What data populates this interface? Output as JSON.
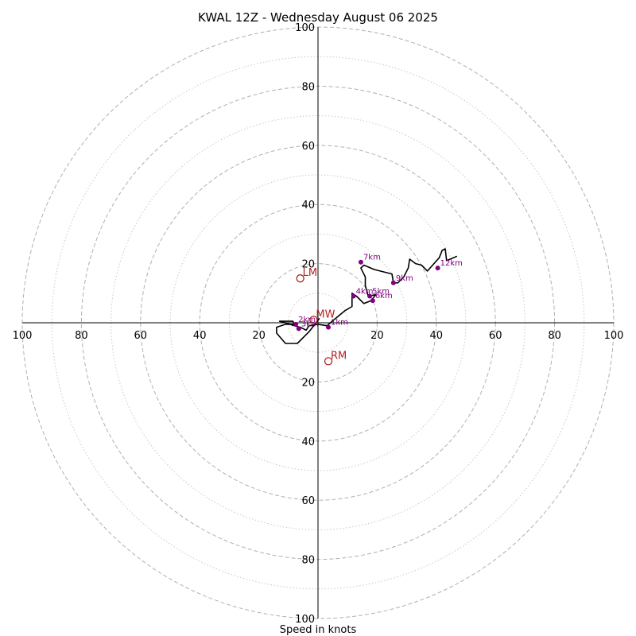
{
  "chart_data": {
    "type": "hodograph",
    "title": "KWAL 12Z - Wednesday August 06 2025",
    "xlabel": "Speed in knots",
    "range": [
      0,
      100
    ],
    "major_rings": [
      20,
      40,
      60,
      80,
      100
    ],
    "minor_rings": [
      10,
      30,
      50,
      70,
      90
    ],
    "tick_labels": {
      "top": [
        "20",
        "40",
        "60",
        "80",
        "100"
      ],
      "bottom": [
        "20",
        "40",
        "60",
        "80",
        "100"
      ],
      "left": [
        "20",
        "40",
        "60",
        "80",
        "100"
      ],
      "right": [
        "20",
        "40",
        "60",
        "80",
        "100"
      ]
    },
    "grid": true,
    "colors": {
      "trace": "#000000",
      "height_points": "#800080",
      "motion": "#b22222",
      "major_ring": "#b0b0b0",
      "minor_ring": "#c8c8c8"
    },
    "trace": [
      [
        0.5,
        1.5
      ],
      [
        -3,
        -3
      ],
      [
        -7,
        -7
      ],
      [
        -11,
        -7
      ],
      [
        -14,
        -3.5
      ],
      [
        -14,
        -1.5
      ],
      [
        -11,
        -0.5
      ],
      [
        -8,
        -0.5
      ],
      [
        -8.5,
        0.5
      ],
      [
        -13,
        0.5
      ],
      [
        -11,
        0
      ],
      [
        -8,
        -1
      ],
      [
        -6,
        -1.5
      ],
      [
        -4,
        -2.5
      ],
      [
        -3,
        -1
      ],
      [
        0,
        -0.5
      ],
      [
        3,
        -1
      ],
      [
        6,
        1.5
      ],
      [
        9,
        4
      ],
      [
        11.5,
        5.5
      ],
      [
        11.5,
        10
      ],
      [
        13,
        9
      ],
      [
        15.5,
        6.5
      ],
      [
        18,
        7.5
      ],
      [
        19.5,
        9.5
      ],
      [
        17,
        9
      ],
      [
        16,
        12.5
      ],
      [
        16,
        15.5
      ],
      [
        14.5,
        18.5
      ],
      [
        15.5,
        19.5
      ],
      [
        19,
        18
      ],
      [
        25,
        16.5
      ],
      [
        25.5,
        13.5
      ],
      [
        27,
        13.5
      ],
      [
        29,
        15.5
      ],
      [
        30.5,
        18.5
      ],
      [
        31,
        21.5
      ],
      [
        33,
        20
      ],
      [
        35,
        19.5
      ],
      [
        37,
        17.5
      ],
      [
        41,
        22
      ],
      [
        42,
        24.5
      ],
      [
        43,
        25
      ],
      [
        43.5,
        21
      ],
      [
        47,
        22.5
      ]
    ],
    "height_points": [
      {
        "label": "1km",
        "u": 3.5,
        "v": -1.5
      },
      {
        "label": "2km",
        "u": -7.5,
        "v": -0.5
      },
      {
        "label": "3km",
        "u": -6.5,
        "v": -2
      },
      {
        "label": "4km",
        "u": 12,
        "v": 9
      },
      {
        "label": "5km",
        "u": 17.5,
        "v": 9
      },
      {
        "label": "6km",
        "u": 18.5,
        "v": 7.5
      },
      {
        "label": "7km",
        "u": 14.5,
        "v": 20.5
      },
      {
        "label": "9km",
        "u": 25.5,
        "v": 13.5
      },
      {
        "label": "12km",
        "u": 40.5,
        "v": 18.5
      }
    ],
    "storm_motion": [
      {
        "label": "LM",
        "u": -6,
        "v": 15
      },
      {
        "label": "MW",
        "u": -1.5,
        "v": 1
      },
      {
        "label": "RM",
        "u": 3.5,
        "v": -13
      }
    ]
  }
}
